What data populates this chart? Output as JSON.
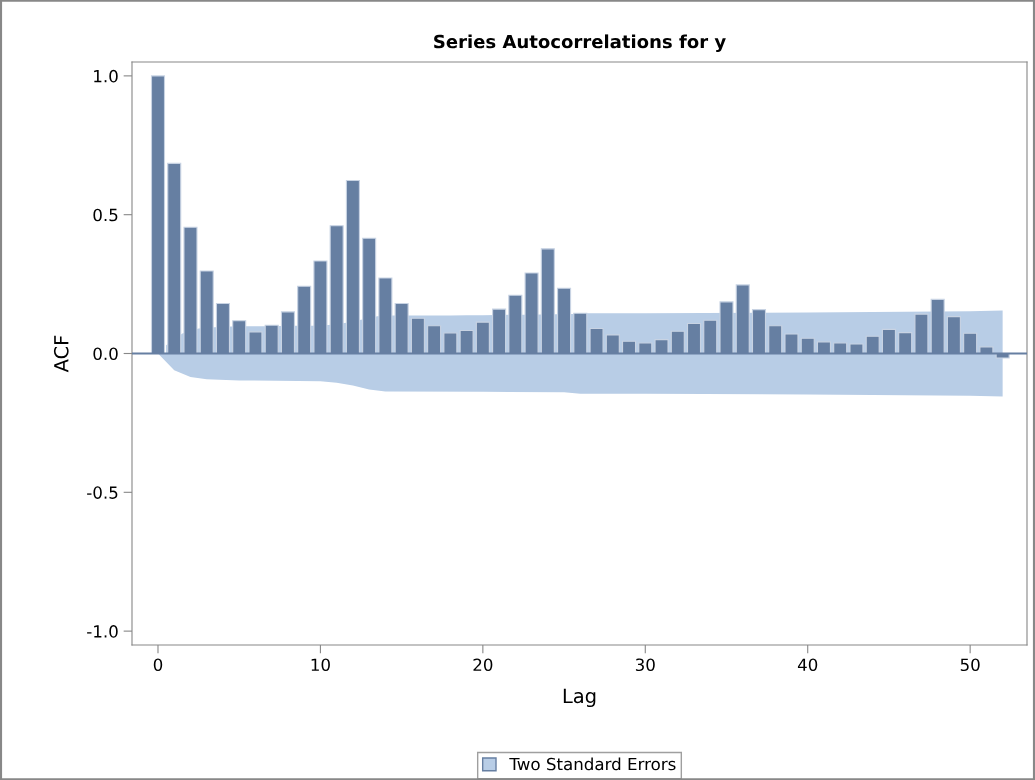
{
  "chart_data": {
    "type": "bar",
    "title": "Series Autocorrelations for y",
    "xlabel": "Lag",
    "ylabel": "ACF",
    "x": [
      0,
      1,
      2,
      3,
      4,
      5,
      6,
      7,
      8,
      9,
      10,
      11,
      12,
      13,
      14,
      15,
      16,
      17,
      18,
      19,
      20,
      21,
      22,
      23,
      24,
      25,
      26,
      27,
      28,
      29,
      30,
      31,
      32,
      33,
      34,
      35,
      36,
      37,
      38,
      39,
      40,
      41,
      42,
      43,
      44,
      45,
      46,
      47,
      48,
      49,
      50,
      51,
      52
    ],
    "series": [
      {
        "type": "area",
        "name": "Two Standard Errors",
        "color": "#b8cde6",
        "x": [
          0.5,
          1.5,
          2.5,
          3.5,
          4.5,
          5.5,
          6,
          6.5,
          7.5,
          8.5,
          9.5,
          10.5,
          11.5,
          12.5,
          13.5,
          14.5,
          16,
          17,
          18,
          19,
          20,
          25.5,
          26,
          30,
          40,
          50,
          52
        ],
        "values": [
          0.03,
          0.072,
          0.09,
          0.095,
          0.097,
          0.098,
          0.098,
          0.098,
          0.099,
          0.1,
          0.1,
          0.103,
          0.11,
          0.122,
          0.134,
          0.137,
          0.137,
          0.137,
          0.137,
          0.138,
          0.138,
          0.142,
          0.145,
          0.145,
          0.148,
          0.152,
          0.155
        ]
      },
      {
        "type": "area",
        "color": "#b8cde6",
        "x": [
          0,
          1,
          2,
          3,
          5,
          10,
          11,
          12,
          13,
          14,
          20,
          25,
          26,
          30,
          40,
          50,
          52
        ],
        "values": [
          0,
          -0.06,
          -0.085,
          -0.093,
          -0.097,
          -0.1,
          -0.105,
          -0.115,
          -0.13,
          -0.137,
          -0.138,
          -0.14,
          -0.145,
          -0.145,
          -0.148,
          -0.152,
          -0.155
        ]
      },
      {
        "type": "bar",
        "color": "#667fa2",
        "values": [
          1.0,
          0.685,
          0.455,
          0.297,
          0.18,
          0.118,
          0.078,
          0.102,
          0.15,
          0.242,
          0.333,
          0.46,
          0.623,
          0.415,
          0.272,
          0.18,
          0.127,
          0.1,
          0.074,
          0.083,
          0.113,
          0.16,
          0.21,
          0.29,
          0.377,
          0.235,
          0.145,
          0.09,
          0.067,
          0.044,
          0.038,
          0.05,
          0.08,
          0.108,
          0.12,
          0.186,
          0.247,
          0.158,
          0.1,
          0.07,
          0.055,
          0.042,
          0.038,
          0.034,
          0.062,
          0.087,
          0.075,
          0.142,
          0.195,
          0.133,
          0.073,
          0.024,
          -0.016
        ]
      }
    ],
    "ref_lines": [
      {
        "axis": "y",
        "value": 0,
        "color": "#667fa2"
      }
    ],
    "xlim": [
      -1.6,
      53.5
    ],
    "xticks": [
      0,
      10,
      20,
      30,
      40,
      50
    ],
    "ylim": [
      -1.05,
      1.05
    ],
    "yticks": [
      {
        "value": -1.0,
        "label": "-1.0"
      },
      {
        "value": -0.5,
        "label": "-0.5"
      },
      {
        "value": 0.0,
        "label": "0.0"
      },
      {
        "value": 0.5,
        "label": "0.5"
      },
      {
        "value": 1.0,
        "label": "1.0"
      }
    ],
    "grid": false,
    "legend": "bottom"
  }
}
